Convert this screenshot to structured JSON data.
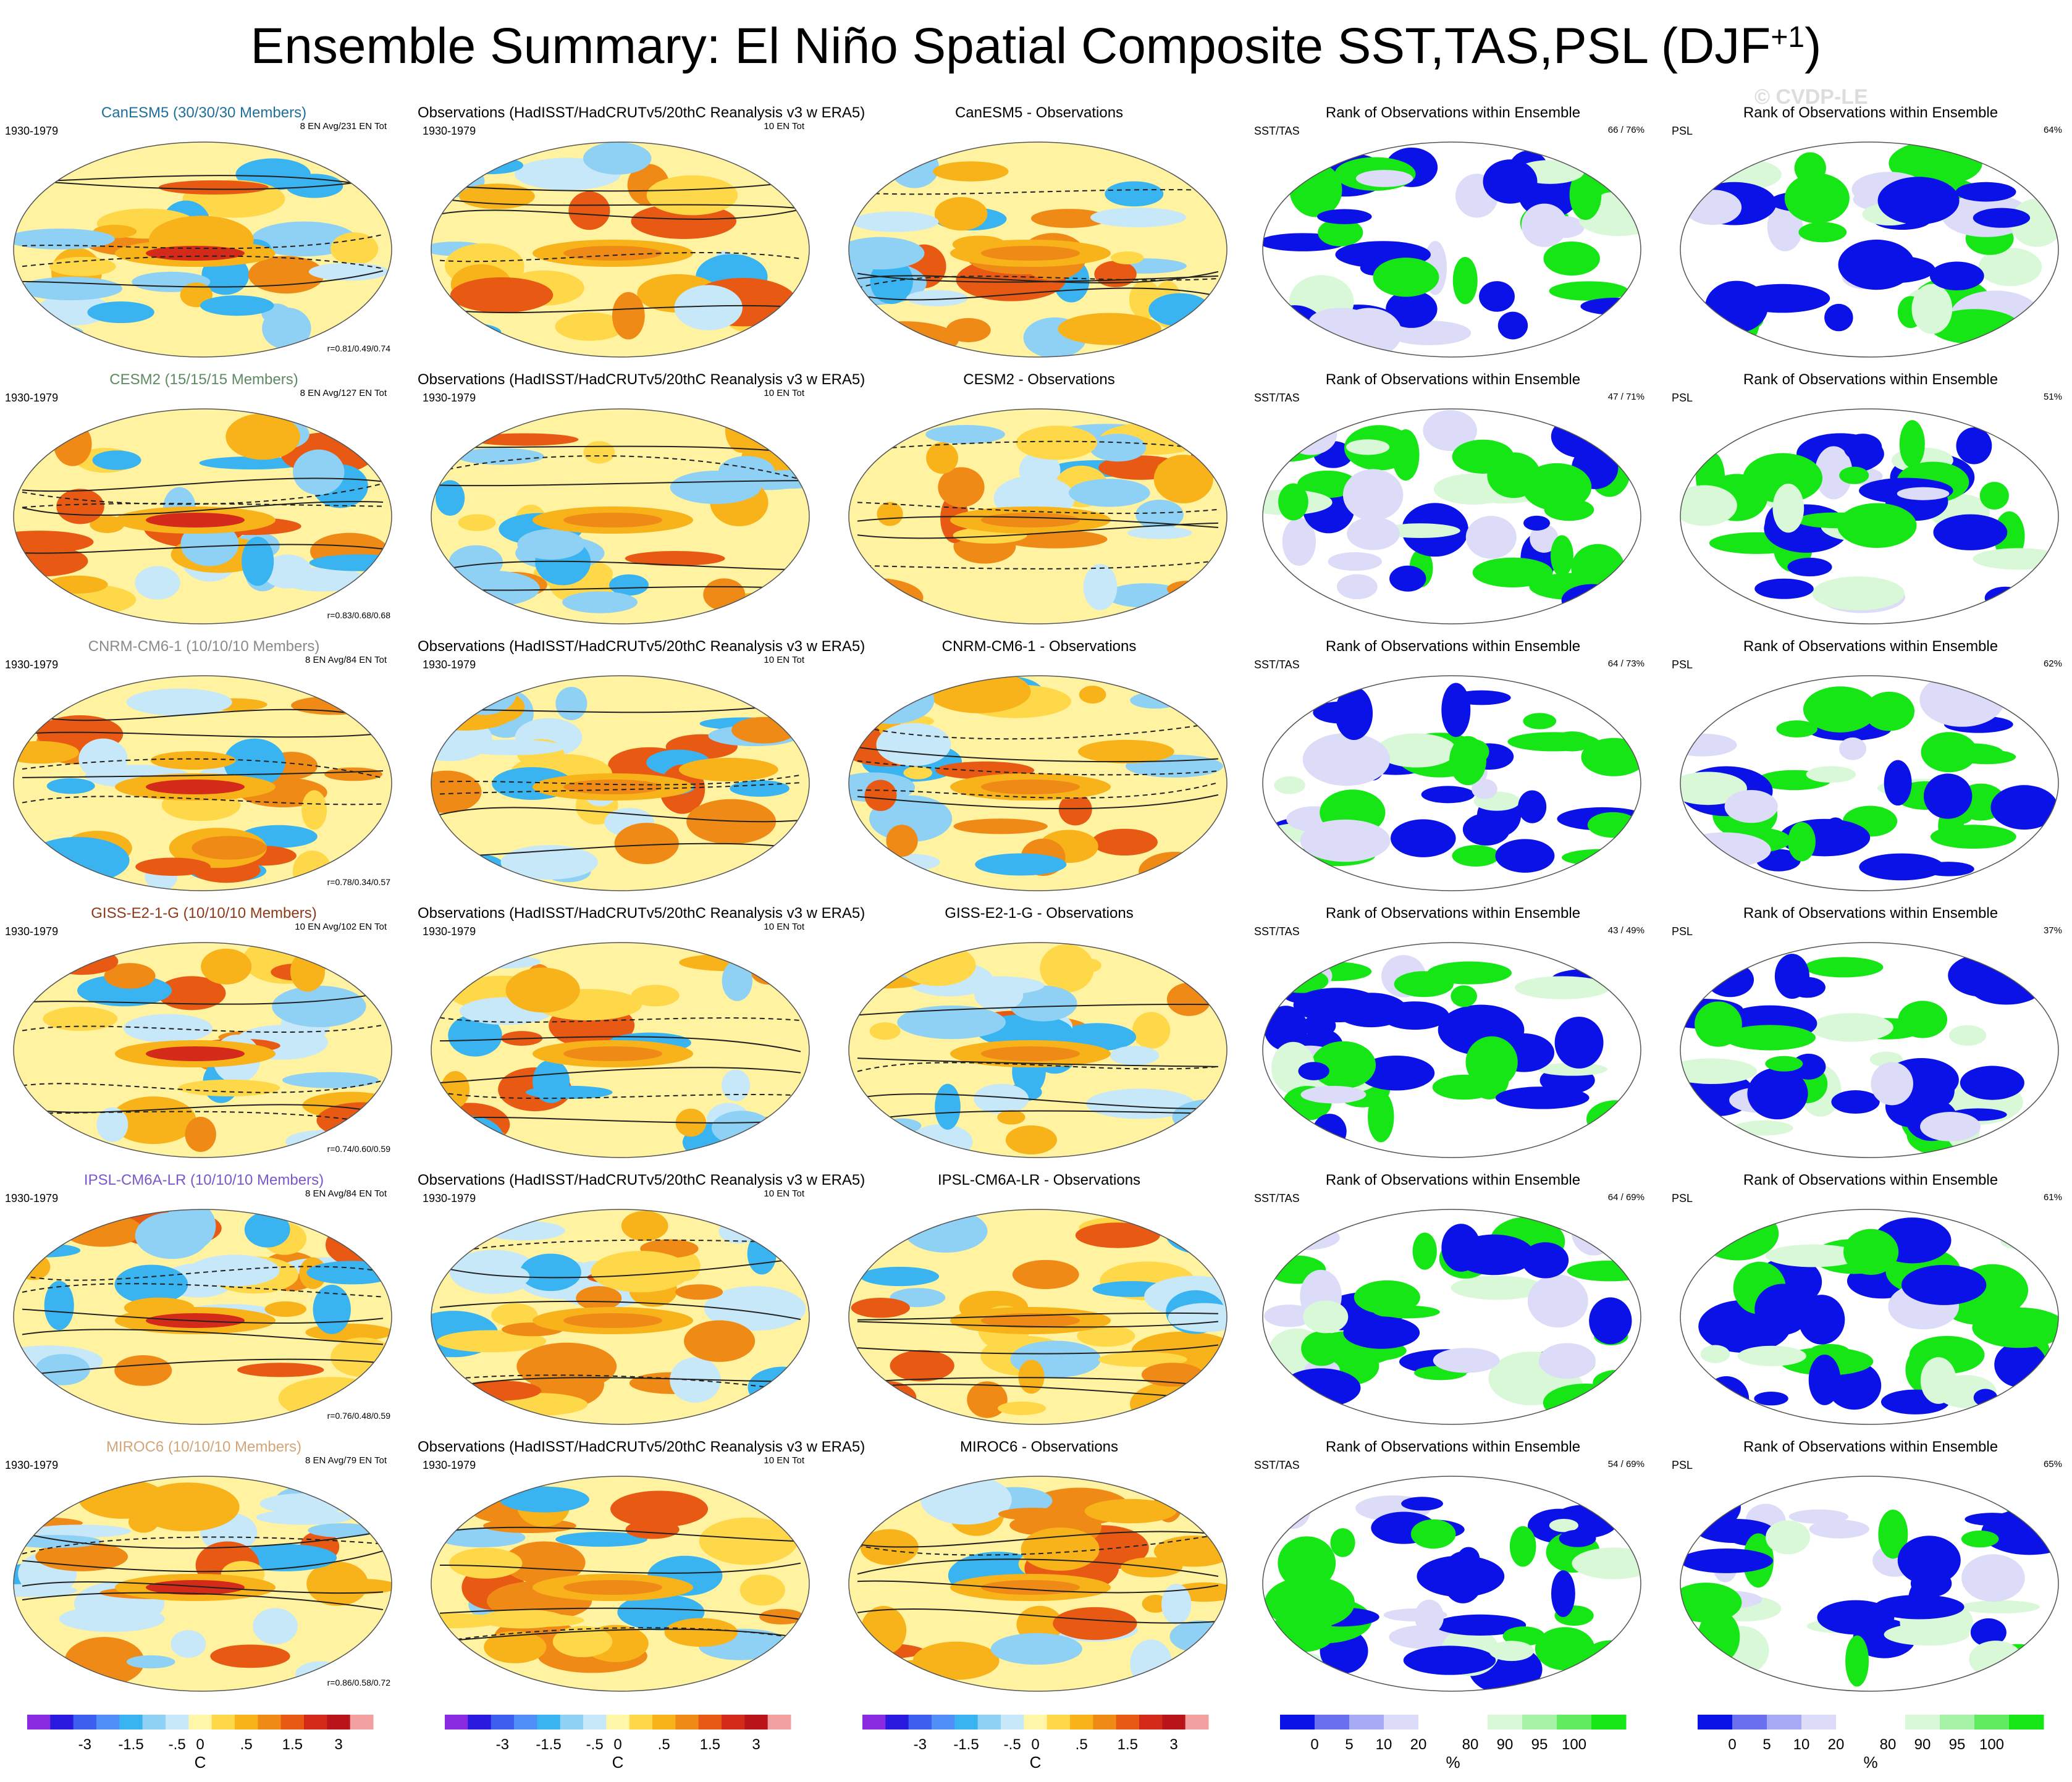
{
  "figure": {
    "title": "Ensemble Summary: El Niño Spatial Composite SST,TAS,PSL (DJF",
    "title_superscript": "+1",
    "title_close": ")",
    "watermark": "© CVDP-LE"
  },
  "common": {
    "period": "1930-1979",
    "obs_title": "Observations (HadISST/HadCRUTv5/20thC Reanalysis v3 w ERA5)",
    "obs_count": "10 EN Tot",
    "rank_title": "Rank of Observations within Ensemble",
    "rank_label_sst": "SST/TAS",
    "rank_label_psl": "PSL"
  },
  "rows": [
    {
      "model_title": "CanESM5 (30/30/30 Members)",
      "model_color": "#1f6f9a",
      "model_stat": "8 EN Avg/231 EN Tot",
      "corr": "r=0.81/0.49/0.74",
      "diff_title": "CanESM5 - Observations",
      "rank_sst": "66 /  76%",
      "rank_psl": "64%"
    },
    {
      "model_title": "CESM2 (15/15/15 Members)",
      "model_color": "#5e8a63",
      "model_stat": "8 EN Avg/127 EN Tot",
      "corr": "r=0.83/0.68/0.68",
      "diff_title": "CESM2 - Observations",
      "rank_sst": "47 /  71%",
      "rank_psl": "51%"
    },
    {
      "model_title": "CNRM-CM6-1 (10/10/10 Members)",
      "model_color": "#8a8a8a",
      "model_stat": "8 EN Avg/84 EN Tot",
      "corr": "r=0.78/0.34/0.57",
      "diff_title": "CNRM-CM6-1 - Observations",
      "rank_sst": "64 /  73%",
      "rank_psl": "62%"
    },
    {
      "model_title": "GISS-E2-1-G (10/10/10 Members)",
      "model_color": "#8b3a1a",
      "model_stat": "10 EN Avg/102 EN Tot",
      "corr": "r=0.74/0.60/0.59",
      "diff_title": "GISS-E2-1-G - Observations",
      "rank_sst": "43 /  49%",
      "rank_psl": "37%"
    },
    {
      "model_title": "IPSL-CM6A-LR (10/10/10 Members)",
      "model_color": "#7b57c9",
      "model_stat": "8 EN Avg/84 EN Tot",
      "corr": "r=0.76/0.48/0.59",
      "diff_title": "IPSL-CM6A-LR - Observations",
      "rank_sst": "64 /  69%",
      "rank_psl": "61%"
    },
    {
      "model_title": "MIROC6 (10/10/10 Members)",
      "model_color": "#d2a679",
      "model_stat": "8 EN Avg/79 EN Tot",
      "corr": "r=0.86/0.58/0.72",
      "diff_title": "MIROC6 - Observations",
      "rank_sst": "54 /  69%",
      "rank_psl": "65%"
    }
  ],
  "colorbars": {
    "temp": {
      "labels": [
        "-3",
        "-1.5",
        "-.5",
        "0",
        ".5",
        "1.5",
        "3"
      ],
      "unit": "C",
      "colors": [
        "#8a2be2",
        "#2a1ae0",
        "#3d5ff0",
        "#4f8ff7",
        "#39b4f0",
        "#8fd0f5",
        "#c7e8f8",
        "#fff6a8",
        "#ffd84a",
        "#f8b21a",
        "#f08a16",
        "#e85a14",
        "#d42a1a",
        "#b8141a",
        "#f2a0a0"
      ]
    },
    "rank": {
      "labels": [
        "0",
        "5",
        "10",
        "20",
        "80",
        "90",
        "95",
        "100"
      ],
      "unit": "%",
      "colors": [
        "#0b12e8",
        "#6a6ff0",
        "#a6a9f4",
        "#dcdcf8",
        "#ffffff",
        "#ffffff",
        "#d8f8d8",
        "#a6f2a6",
        "#60eb60",
        "#16e616"
      ]
    }
  }
}
